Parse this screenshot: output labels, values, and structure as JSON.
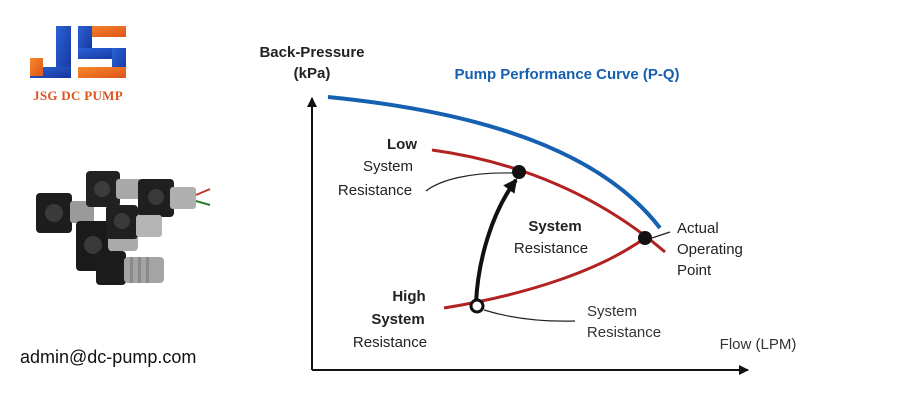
{
  "brand": {
    "name": "JSG DC PUMP",
    "colors": {
      "blue": "#1f4db8",
      "orange": "#f06a1d"
    }
  },
  "contact": {
    "email": "admin@dc-pump.com"
  },
  "diagram": {
    "title": "Pump Performance Curve (P-Q)",
    "y_axis_label_line1": "Back-Pressure",
    "y_axis_label_line2": "(kPa)",
    "x_axis_label": "Flow (LPM)",
    "low_label": {
      "line1": "Low",
      "line2": "System",
      "line3": "Resistance"
    },
    "high_label": {
      "line1": "High",
      "line2": "System",
      "line3": "Resistance"
    },
    "middle_label": {
      "line1": "System",
      "line2": "Resistance"
    },
    "bottom_label": {
      "line1": "System",
      "line2": "Resistance"
    },
    "operating_label": {
      "line1": "Actual",
      "line2": "Operating",
      "line3": "Point"
    },
    "colors": {
      "pump_curve": "#1560b0",
      "system_curve": "#b32222",
      "title": "#1560b0",
      "text": "#222222"
    }
  }
}
